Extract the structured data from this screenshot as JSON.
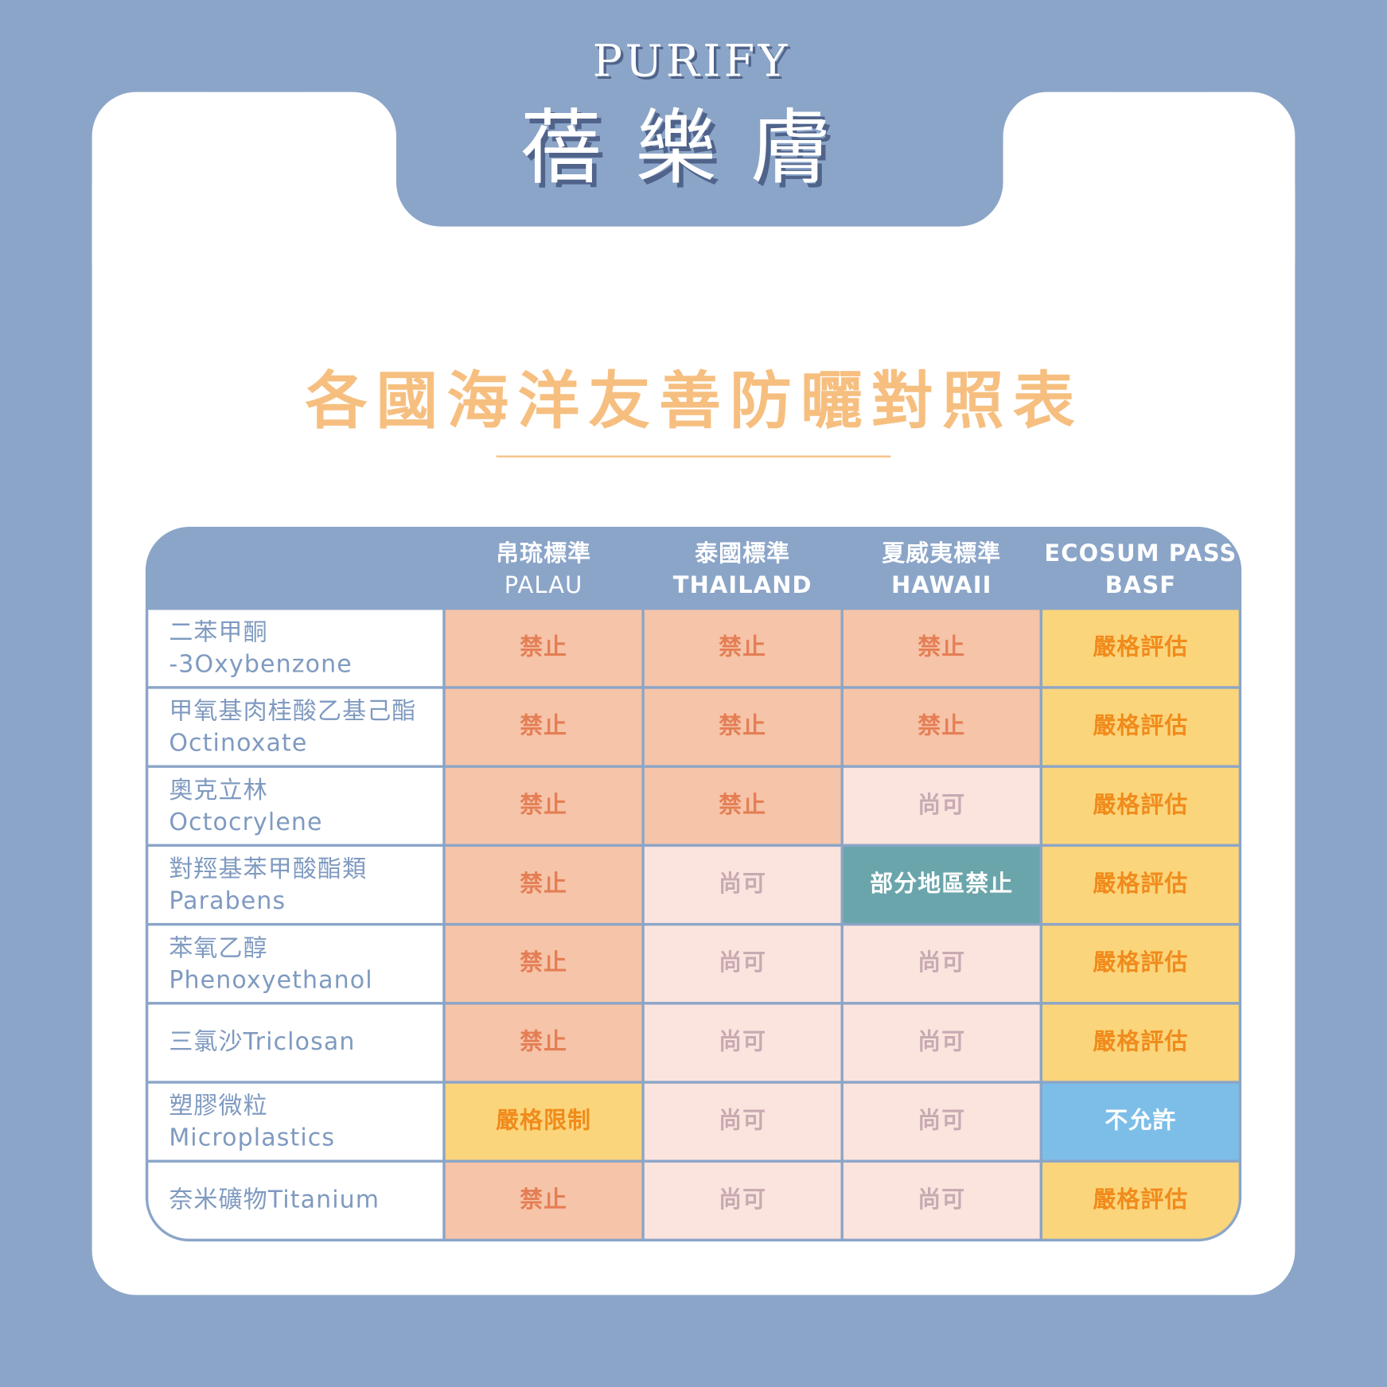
{
  "header": {
    "brand": "PURIFY",
    "name": "蓓樂膚"
  },
  "title": "各國海洋友善防曬對照表",
  "table": {
    "columns": [
      [
        "帛琉標準",
        "PALAU"
      ],
      [
        "泰國標準",
        "THAILAND"
      ],
      [
        "夏威夷標準",
        "HAWAII"
      ],
      [
        "ECOSUM PASS",
        "BASF"
      ]
    ],
    "rows": [
      {
        "label": [
          "二苯甲酮",
          "-3Oxybenzone"
        ],
        "cells": [
          {
            "text": "禁止",
            "color": "#f6c4a8",
            "text_color": "#e47e55"
          },
          {
            "text": "禁止",
            "color": "#f6c4a8",
            "text_color": "#e47e55"
          },
          {
            "text": "禁止",
            "color": "#f6c4a8",
            "text_color": "#e47e55"
          },
          {
            "text": "嚴格評估",
            "color": "#fbd57b",
            "text_color": "#f08b1c"
          }
        ]
      },
      {
        "label": [
          "甲氧基肉桂酸乙基己酯",
          "Octinoxate"
        ],
        "cells": [
          {
            "text": "禁止",
            "color": "#f6c4a8",
            "text_color": "#e47e55"
          },
          {
            "text": "禁止",
            "color": "#f6c4a8",
            "text_color": "#e47e55"
          },
          {
            "text": "禁止",
            "color": "#f6c4a8",
            "text_color": "#e47e55"
          },
          {
            "text": "嚴格評估",
            "color": "#fbd57b",
            "text_color": "#f08b1c"
          }
        ]
      },
      {
        "label": [
          "奧克立林",
          "Octocrylene"
        ],
        "cells": [
          {
            "text": "禁止",
            "color": "#f6c4a8",
            "text_color": "#e47e55"
          },
          {
            "text": "禁止",
            "color": "#f6c4a8",
            "text_color": "#e47e55"
          },
          {
            "text": "尚可",
            "color": "#fbe4dd",
            "text_color": "#c7aab2"
          },
          {
            "text": "嚴格評估",
            "color": "#fbd57b",
            "text_color": "#f08b1c"
          }
        ]
      },
      {
        "label": [
          "對羥基苯甲酸酯類",
          "Parabens"
        ],
        "cells": [
          {
            "text": "禁止",
            "color": "#f6c4a8",
            "text_color": "#e47e55"
          },
          {
            "text": "尚可",
            "color": "#fbe4dd",
            "text_color": "#c7aab2"
          },
          {
            "text": "部分地區禁止",
            "color": "#6aa5ab",
            "text_color": "#ffffff"
          },
          {
            "text": "嚴格評估",
            "color": "#fbd57b",
            "text_color": "#f08b1c"
          }
        ]
      },
      {
        "label": [
          "苯氧乙醇",
          "Phenoxyethanol"
        ],
        "cells": [
          {
            "text": "禁止",
            "color": "#f6c4a8",
            "text_color": "#e47e55"
          },
          {
            "text": "尚可",
            "color": "#fbe4dd",
            "text_color": "#c7aab2"
          },
          {
            "text": "尚可",
            "color": "#fbe4dd",
            "text_color": "#c7aab2"
          },
          {
            "text": "嚴格評估",
            "color": "#fbd57b",
            "text_color": "#f08b1c"
          }
        ]
      },
      {
        "label": [
          "三氯沙Triclosan"
        ],
        "cells": [
          {
            "text": "禁止",
            "color": "#f6c4a8",
            "text_color": "#e47e55"
          },
          {
            "text": "尚可",
            "color": "#fbe4dd",
            "text_color": "#c7aab2"
          },
          {
            "text": "尚可",
            "color": "#fbe4dd",
            "text_color": "#c7aab2"
          },
          {
            "text": "嚴格評估",
            "color": "#fbd57b",
            "text_color": "#f08b1c"
          }
        ]
      },
      {
        "label": [
          "塑膠微粒",
          "Microplastics"
        ],
        "cells": [
          {
            "text": "嚴格限制",
            "color": "#fbd57b",
            "text_color": "#f08b1c"
          },
          {
            "text": "尚可",
            "color": "#fbe4dd",
            "text_color": "#c7aab2"
          },
          {
            "text": "尚可",
            "color": "#fbe4dd",
            "text_color": "#c7aab2"
          },
          {
            "text": "不允許",
            "color": "#7dbee8",
            "text_color": "#ffffff"
          }
        ]
      },
      {
        "label": [
          "奈米礦物Titanium"
        ],
        "cells": [
          {
            "text": "禁止",
            "color": "#f6c4a8",
            "text_color": "#e47e55"
          },
          {
            "text": "尚可",
            "color": "#fbe4dd",
            "text_color": "#c7aab2"
          },
          {
            "text": "尚可",
            "color": "#fbe4dd",
            "text_color": "#c7aab2"
          },
          {
            "text": "嚴格評估",
            "color": "#fbd57b",
            "text_color": "#f08b1c"
          }
        ]
      }
    ]
  }
}
